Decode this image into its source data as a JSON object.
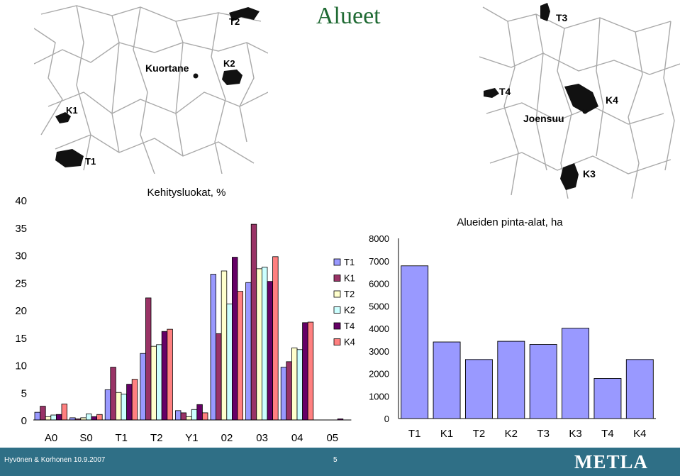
{
  "slide": {
    "title": "Alueet",
    "footer_author": "Hyvönen & Korhonen  10.9.2007",
    "footer_page": "5",
    "logo": "METLA"
  },
  "maps": {
    "left": {
      "town": "Kuortane",
      "areas": [
        "T2",
        "K2",
        "K1",
        "T1"
      ]
    },
    "right": {
      "town": "Joensuu",
      "areas": [
        "T3",
        "T4",
        "K4",
        "K3"
      ]
    }
  },
  "colors": {
    "footer": "#2f6f86",
    "title": "#1f6a33",
    "bar_area": "#9999ff"
  },
  "chart_data": [
    {
      "type": "bar",
      "title": "Kehitysluokat, %",
      "categories": [
        "A0",
        "S0",
        "T1",
        "T2",
        "Y1",
        "02",
        "03",
        "04",
        "05"
      ],
      "ylim": [
        0,
        40
      ],
      "yticks": [
        0,
        5,
        10,
        15,
        20,
        25,
        30,
        35,
        40
      ],
      "legend_position": "right",
      "grid": false,
      "series": [
        {
          "name": "T1",
          "color": "#9999ff",
          "values": [
            1.4,
            0.4,
            5.5,
            12.1,
            1.7,
            26.5,
            25.0,
            9.6,
            0.0
          ]
        },
        {
          "name": "K1",
          "color": "#993366",
          "values": [
            2.5,
            0.2,
            9.6,
            22.2,
            1.3,
            15.7,
            35.6,
            10.6,
            0.0
          ]
        },
        {
          "name": "T2",
          "color": "#ffffcc",
          "values": [
            0.6,
            0.4,
            5.0,
            13.4,
            0.6,
            27.1,
            27.5,
            13.1,
            0.0
          ]
        },
        {
          "name": "K2",
          "color": "#ccffff",
          "values": [
            0.9,
            1.1,
            4.7,
            13.7,
            1.9,
            21.1,
            27.8,
            12.8,
            0.0
          ]
        },
        {
          "name": "T4",
          "color": "#660066",
          "values": [
            1.0,
            0.6,
            6.5,
            16.1,
            2.8,
            29.6,
            25.2,
            17.7,
            0.2
          ]
        },
        {
          "name": "K4",
          "color": "#ff8080",
          "values": [
            2.9,
            1.0,
            7.4,
            16.5,
            1.3,
            23.4,
            29.7,
            17.8,
            0.0
          ]
        }
      ]
    },
    {
      "type": "bar",
      "title": "Alueiden pinta-alat, ha",
      "categories": [
        "T1",
        "K1",
        "T2",
        "K2",
        "T3",
        "K3",
        "T4",
        "K4"
      ],
      "values": [
        6780,
        3400,
        2620,
        3430,
        3290,
        4010,
        1780,
        2620
      ],
      "ylim": [
        0,
        8000
      ],
      "yticks": [
        0,
        1000,
        2000,
        3000,
        4000,
        5000,
        6000,
        7000,
        8000
      ],
      "grid": false
    }
  ]
}
